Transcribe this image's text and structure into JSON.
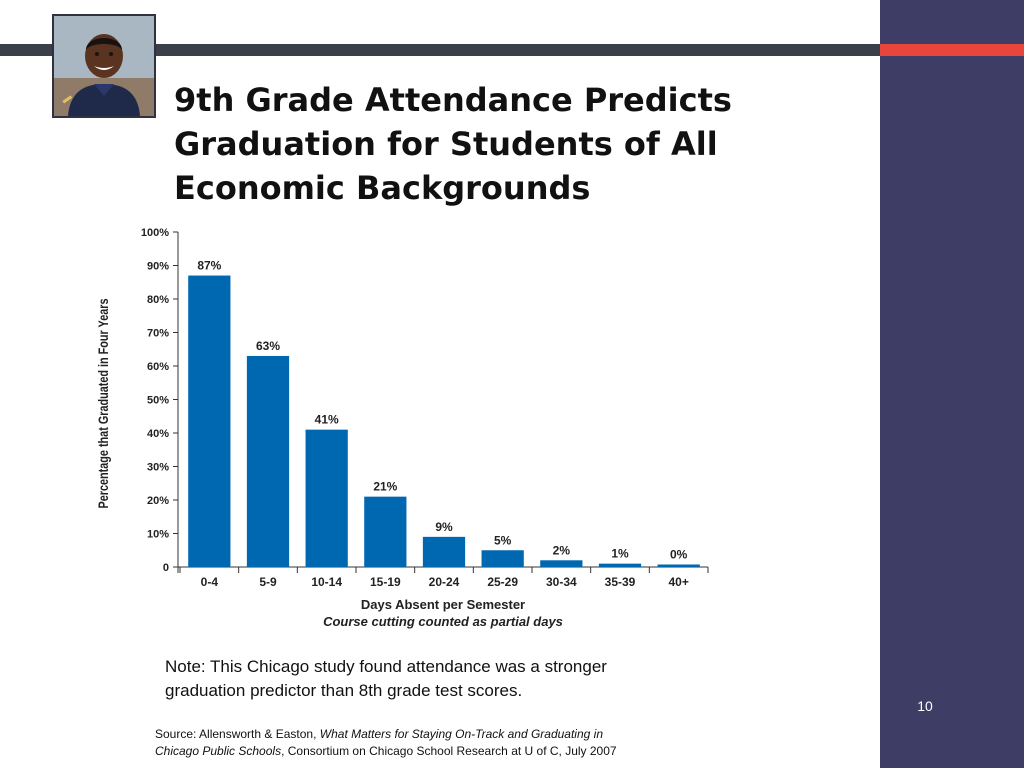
{
  "slide": {
    "title_lines": [
      "9th Grade Attendance Predicts",
      "Graduation for Students of All",
      "Economic Backgrounds"
    ],
    "slide_number": "10",
    "note_lines": [
      "Note:  This Chicago study found attendance was a stronger",
      "graduation predictor than 8th grade test scores."
    ],
    "source": {
      "prefix": "Source: Allensworth & Easton, ",
      "italic_1": "What Matters for Staying On-Track and Graduating in",
      "italic_2": "Chicago Public Schools",
      "suffix": ", Consortium on Chicago School Research at U of C, July 2007"
    },
    "colors": {
      "side_panel": "#3e3d66",
      "accent": "#e8453c",
      "top_bar": "#3a3f4a",
      "bar": "#0067b1"
    },
    "photo_icon": "student-photo"
  },
  "chart_data": {
    "type": "bar",
    "categories": [
      "0-4",
      "5-9",
      "10-14",
      "15-19",
      "20-24",
      "25-29",
      "30-34",
      "35-39",
      "40+"
    ],
    "values": [
      87,
      63,
      41,
      21,
      9,
      5,
      2,
      1,
      0
    ],
    "data_labels": [
      "87%",
      "63%",
      "41%",
      "21%",
      "9%",
      "5%",
      "2%",
      "1%",
      "0%"
    ],
    "xlabel": "Days Absent per Semester",
    "xlabel_sub": "Course cutting counted as partial days",
    "ylabel": "Percentage that Graduated in Four Years",
    "ylim": [
      0,
      100
    ],
    "yticks": [
      0,
      10,
      20,
      30,
      40,
      50,
      60,
      70,
      80,
      90,
      100
    ],
    "ytick_labels": [
      "0",
      "10%",
      "20%",
      "30%",
      "40%",
      "50%",
      "60%",
      "70%",
      "80%",
      "90%",
      "100%"
    ],
    "grid": false,
    "legend": "none",
    "bar_color": "#0067b1"
  }
}
